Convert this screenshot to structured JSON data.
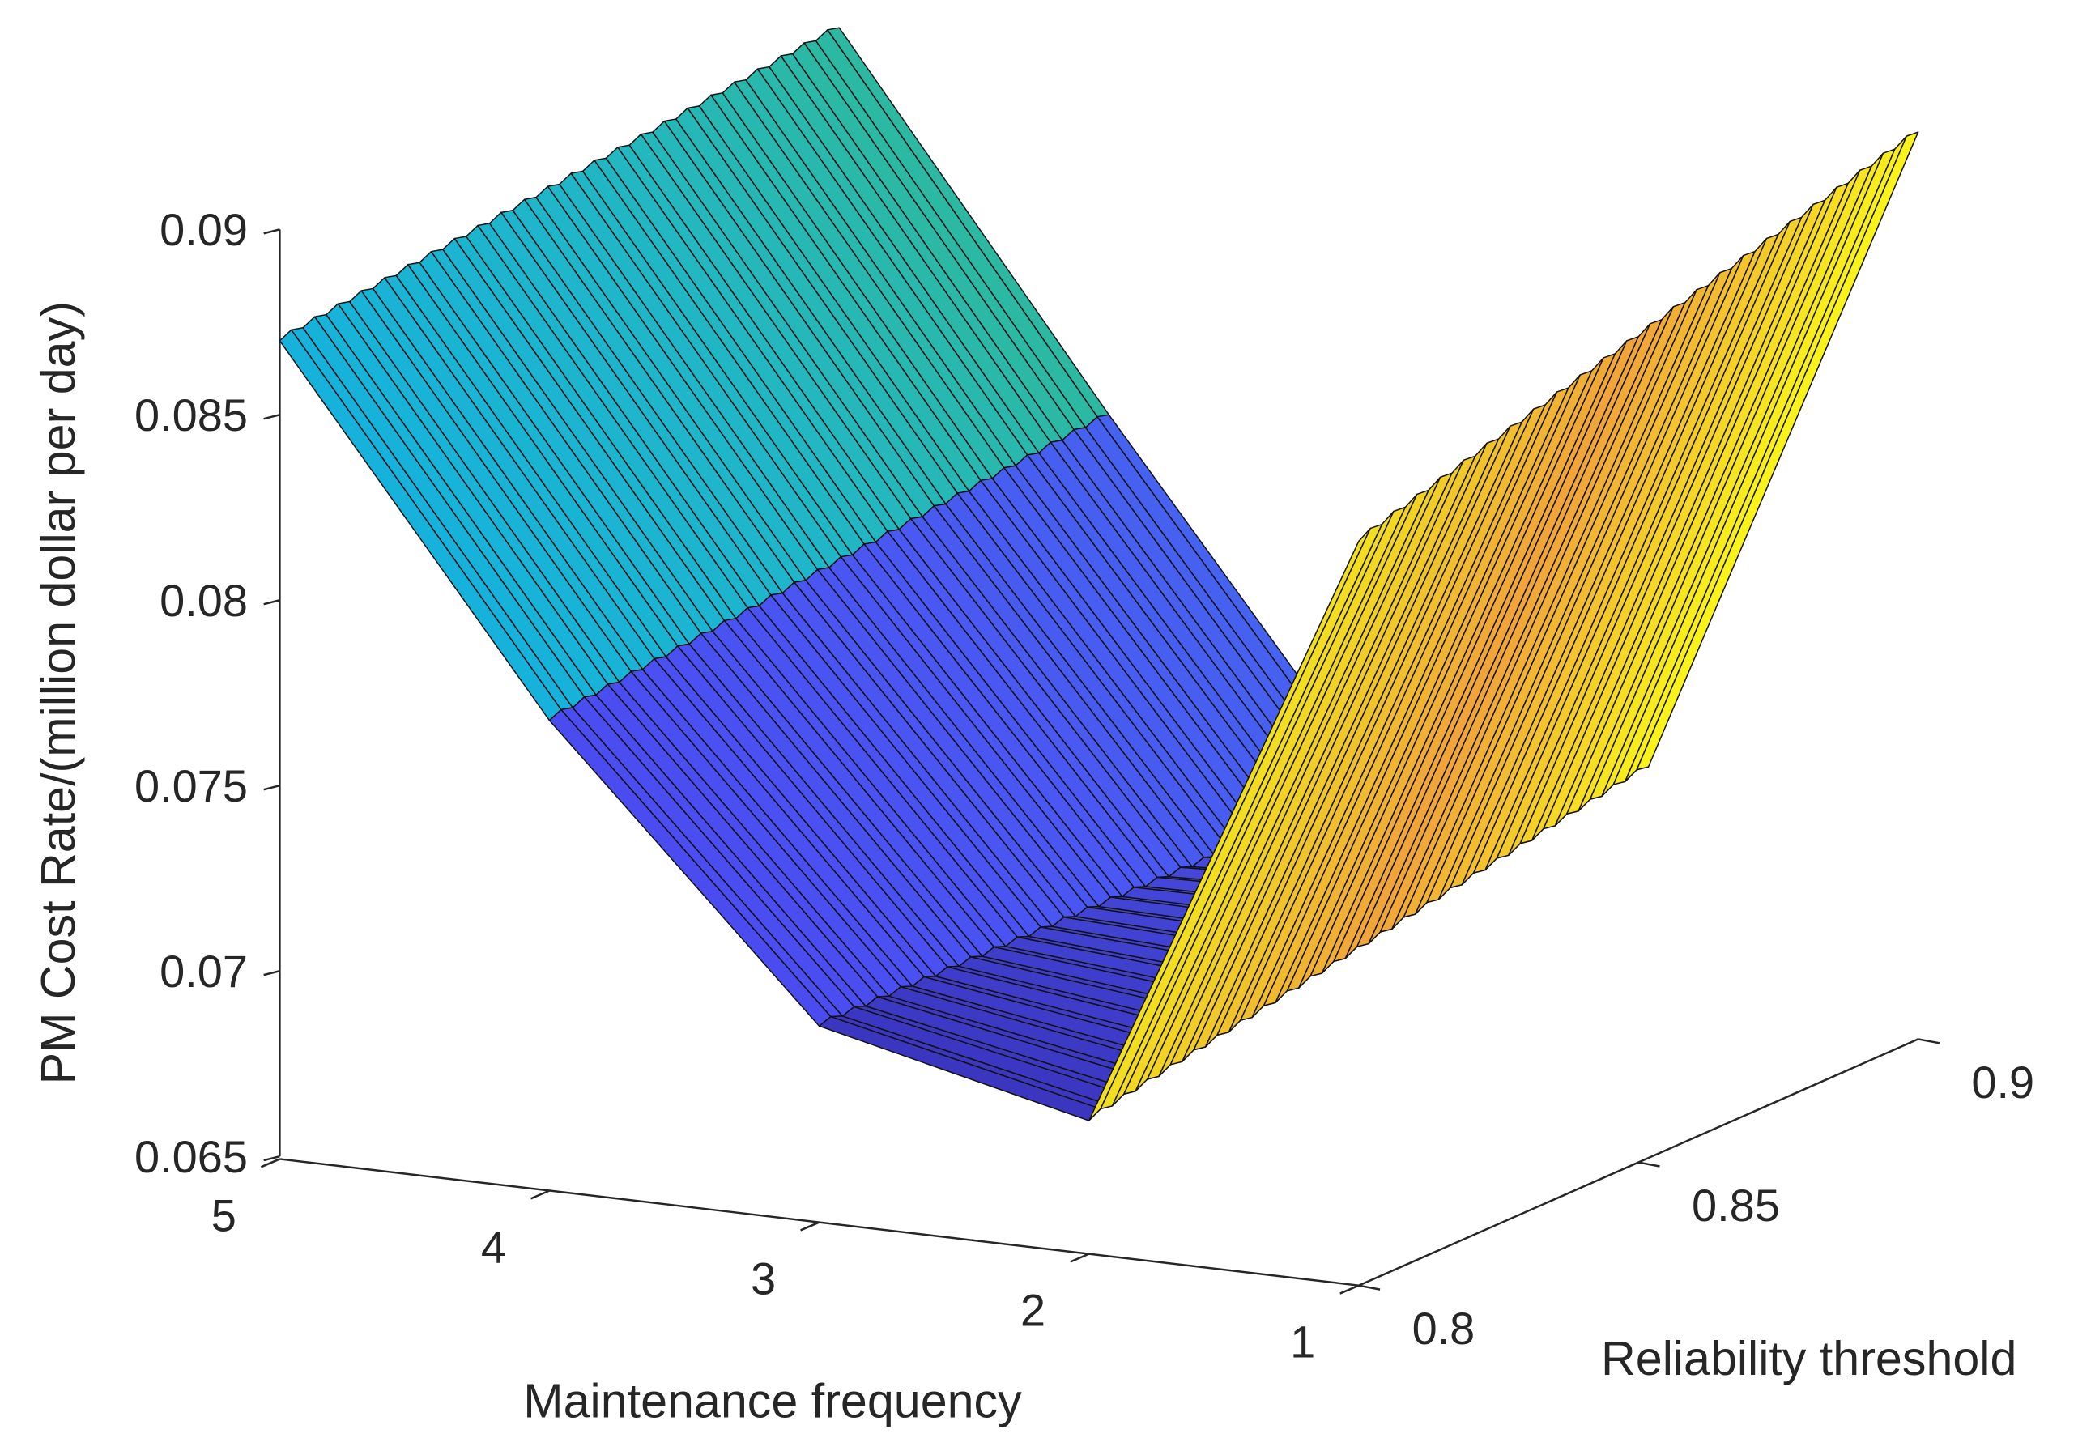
{
  "chart_data": {
    "type": "surface",
    "title": "",
    "xlabel": "Maintenance frequency",
    "ylabel": "Reliability threshold",
    "zlabel": "PM Cost Rate/(million dollar per day)",
    "x_ticks": [
      "5",
      "4",
      "3",
      "2",
      "1"
    ],
    "y_ticks": [
      "0.8",
      "0.85",
      "0.9"
    ],
    "z_ticks": [
      "0.065",
      "0.07",
      "0.075",
      "0.08",
      "0.085",
      "0.09"
    ],
    "xlim": [
      1,
      5
    ],
    "ylim": [
      0.8,
      0.9
    ],
    "zlim": [
      0.065,
      0.09
    ],
    "frequency": [
      1,
      2,
      3,
      4,
      5
    ],
    "reliability_range": [
      0.8,
      0.9
    ],
    "z_at_reliability_0_8": [
      0.0851,
      0.0686,
      0.0703,
      0.0777,
      0.0871
    ],
    "z_at_reliability_0_9": [
      0.0895,
      0.0715,
      0.0701,
      0.0793,
      0.0889
    ],
    "colormap": "parula",
    "strip_colors": [
      [
        "#f2e11e",
        "#f0a33a",
        "#f9f41a"
      ],
      [
        "#3a36c0",
        "#4244d4",
        "#4a4ee4"
      ],
      [
        "#4a4cf0",
        "#4a56f2",
        "#4662f0"
      ],
      [
        "#16b2dc",
        "#20b6c8",
        "#2db9a0"
      ]
    ]
  }
}
